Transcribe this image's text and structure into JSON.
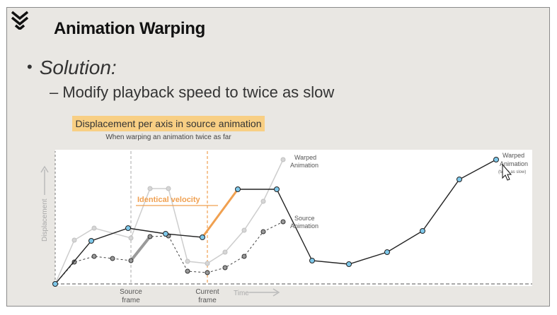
{
  "slide": {
    "title": "Animation Warping",
    "bullet": "Solution:",
    "sub_bullet": "– Modify playback speed to twice as slow",
    "callout": "Displacement per axis in source animation",
    "caption": "When warping an animation twice as far"
  },
  "diagram": {
    "y_axis_label": "Displacement",
    "x_axis_label": "Time",
    "source_frame_label": [
      "Source",
      "frame"
    ],
    "current_frame_label": [
      "Current",
      "frame"
    ],
    "identical_velocity_label": "Identical velocity",
    "warped_label_gray": [
      "Warped",
      "Animation"
    ],
    "source_label": [
      "Source",
      "Animation"
    ],
    "warped_label_right": [
      "Warped",
      "Animation"
    ],
    "twice_as_slow_note": "(twice as slow)",
    "colors": {
      "accent_orange": "#f0a050",
      "warped_point": "#7ec8ea",
      "source_point": "#9a9a9a",
      "gray_curve": "#c8c8c8",
      "callout_bg": "#f8cf84"
    }
  }
}
